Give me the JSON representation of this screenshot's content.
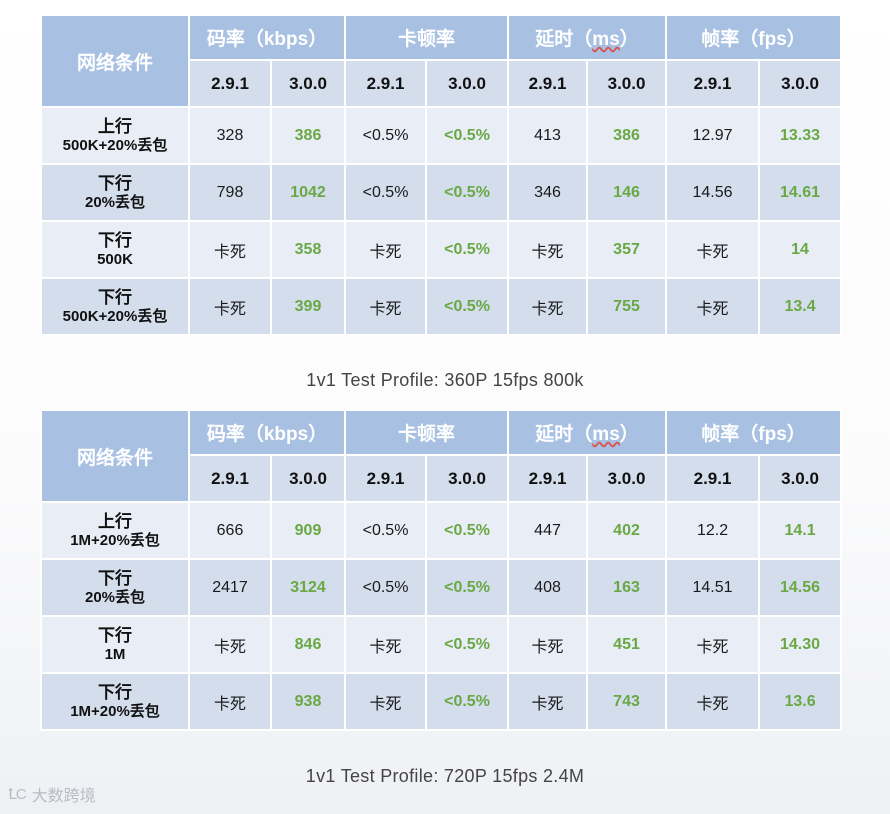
{
  "tables": [
    {
      "headers": {
        "condition": "网络条件",
        "groups": [
          {
            "pre": "码率（",
            "unit": "kbps",
            "post": "）"
          },
          {
            "pre": "卡顿率",
            "unit": "",
            "post": ""
          },
          {
            "pre": "延时（",
            "unit": "ms",
            "post": "）"
          },
          {
            "pre": "帧率（",
            "unit": "fps",
            "post": "）"
          }
        ],
        "versions": [
          "2.9.1",
          "3.0.0",
          "2.9.1",
          "3.0.0",
          "2.9.1",
          "3.0.0",
          "2.9.1",
          "3.0.0"
        ]
      },
      "rows": [
        {
          "line1": "上行",
          "line2": "500K+20%丢包",
          "values": [
            "328",
            "386",
            "<0.5%",
            "<0.5%",
            "413",
            "386",
            "12.97",
            "13.33"
          ]
        },
        {
          "line1": "下行",
          "line2": "20%丢包",
          "values": [
            "798",
            "1042",
            "<0.5%",
            "<0.5%",
            "346",
            "146",
            "14.56",
            "14.61"
          ]
        },
        {
          "line1": "下行",
          "line2": "500K",
          "values": [
            "卡死",
            "358",
            "卡死",
            "<0.5%",
            "卡死",
            "357",
            "卡死",
            "14"
          ]
        },
        {
          "line1": "下行",
          "line2": "500K+20%丢包",
          "values": [
            "卡死",
            "399",
            "卡死",
            "<0.5%",
            "卡死",
            "755",
            "卡死",
            "13.4"
          ]
        }
      ],
      "caption": "1v1  Test Profile: 360P 15fps 800k"
    },
    {
      "headers": {
        "condition": "网络条件",
        "groups": [
          {
            "pre": "码率（",
            "unit": "kbps",
            "post": "）"
          },
          {
            "pre": "卡顿率",
            "unit": "",
            "post": ""
          },
          {
            "pre": "延时（",
            "unit": "ms",
            "post": "）"
          },
          {
            "pre": "帧率（",
            "unit": "fps",
            "post": "）"
          }
        ],
        "versions": [
          "2.9.1",
          "3.0.0",
          "2.9.1",
          "3.0.0",
          "2.9.1",
          "3.0.0",
          "2.9.1",
          "3.0.0"
        ]
      },
      "rows": [
        {
          "line1": "上行",
          "line2": "1M+20%丢包",
          "values": [
            "666",
            "909",
            "<0.5%",
            "<0.5%",
            "447",
            "402",
            "12.2",
            "14.1"
          ]
        },
        {
          "line1": "下行",
          "line2": "20%丢包",
          "values": [
            "2417",
            "3124",
            "<0.5%",
            "<0.5%",
            "408",
            "163",
            "14.51",
            "14.56"
          ]
        },
        {
          "line1": "下行",
          "line2": "1M",
          "values": [
            "卡死",
            "846",
            "卡死",
            "<0.5%",
            "卡死",
            "451",
            "卡死",
            "14.30"
          ]
        },
        {
          "line1": "下行",
          "line2": "1M+20%丢包",
          "values": [
            "卡死",
            "938",
            "卡死",
            "<0.5%",
            "卡死",
            "743",
            "卡死",
            "13.6"
          ]
        }
      ],
      "caption": "1v1  Test Profile: 720P 15fps 2.4M"
    }
  ],
  "colors": {
    "header_bg": "#a8c0e2",
    "row_light": "#e9eef6",
    "row_dark": "#d3ddec",
    "highlight_green": "#6aa845"
  },
  "watermark": {
    "logo_icon": "jiyun-logo-icon",
    "logo_text": "ꝈC",
    "text": "大数跨境"
  }
}
